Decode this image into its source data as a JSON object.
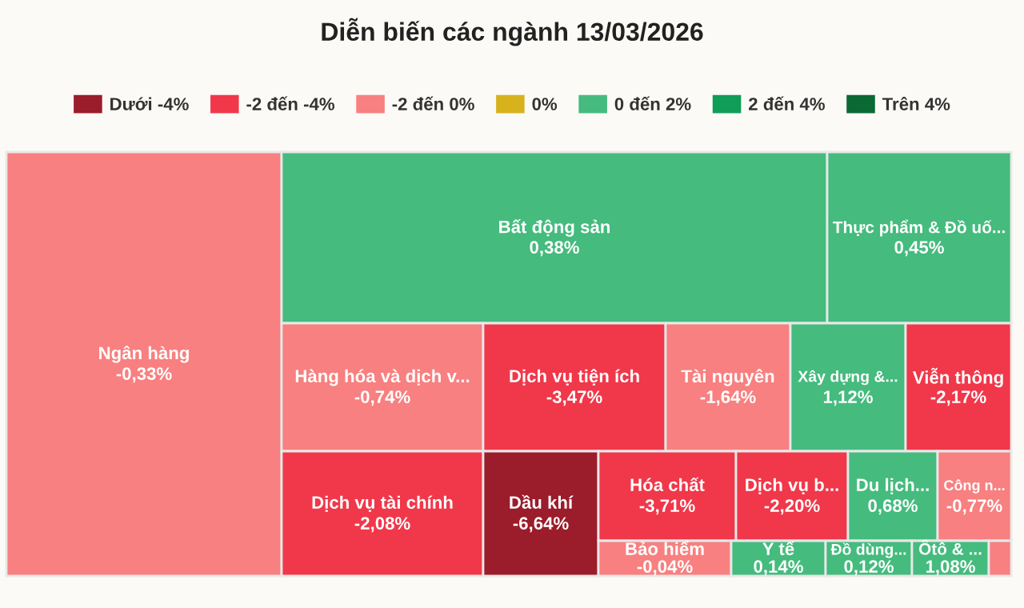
{
  "chart_data": {
    "type": "other",
    "title": "Diễn biến các ngành 13/03/2026",
    "legend": "top",
    "categories": [
      "Ngân hàng",
      "Bất động sản",
      "Thực phẩm & Đồ uố...",
      "Hàng hóa và dịch v...",
      "Dịch vụ tiện ích",
      "Tài nguyên",
      "Xây dựng &...",
      "Viễn thông",
      "Dịch vụ tài chính",
      "Dầu khí",
      "Hóa chất",
      "Dịch vụ b...",
      "Du lịch...",
      "Công n...",
      "Bảo hiểm",
      "Y tế",
      "Đồ dùng...",
      "Ôtô & ...",
      null
    ],
    "values": [
      -0.33,
      0.38,
      0.45,
      -0.74,
      -3.47,
      -1.64,
      1.12,
      -2.17,
      -2.08,
      -6.64,
      -3.71,
      -2.2,
      0.68,
      -0.77,
      -0.04,
      0.14,
      0.12,
      1.08,
      null
    ],
    "value_labels": [
      "-0,33%",
      "0,38%",
      "0,45%",
      "-0,74%",
      "-3,47%",
      "-1,64%",
      "1,12%",
      "-2,17%",
      "-2,08%",
      "-6,64%",
      "-3,71%",
      "-2,20%",
      "0,68%",
      "-0,77%",
      "-0,04%",
      "0,14%",
      "0,12%",
      "1,08%",
      null
    ],
    "colors": [
      "#f88080",
      "#45bb7e",
      "#45bb7e",
      "#f88080",
      "#f0384a",
      "#f88080",
      "#45bb7e",
      "#f0384a",
      "#f0384a",
      "#9b1c2a",
      "#f0384a",
      "#f0384a",
      "#45bb7e",
      "#f88080",
      "#f88080",
      "#45bb7e",
      "#45bb7e",
      "#45bb7e",
      "#f88080"
    ],
    "series": [
      {
        "name": "Dưới -4%",
        "color": "#9b1c2a",
        "values": [
          null,
          null,
          null,
          null,
          null,
          null,
          null,
          null,
          null,
          null,
          null,
          null,
          null,
          null,
          null,
          null,
          null,
          null,
          null
        ]
      },
      {
        "name": "-2 đến -4%",
        "color": "#f0384a",
        "values": [
          null,
          null,
          null,
          null,
          null,
          null,
          null,
          null,
          null,
          null,
          null,
          null,
          null,
          null,
          null,
          null,
          null,
          null,
          null
        ]
      },
      {
        "name": "-2 đến 0%",
        "color": "#f88080",
        "values": [
          null,
          null,
          null,
          null,
          null,
          null,
          null,
          null,
          null,
          null,
          null,
          null,
          null,
          null,
          null,
          null,
          null,
          null,
          null
        ]
      },
      {
        "name": "0%",
        "color": "#d8b21c",
        "values": [
          null,
          null,
          null,
          null,
          null,
          null,
          null,
          null,
          null,
          null,
          null,
          null,
          null,
          null,
          null,
          null,
          null,
          null,
          null
        ]
      },
      {
        "name": "0 đến 2%",
        "color": "#45bb7e",
        "values": [
          null,
          null,
          null,
          null,
          null,
          null,
          null,
          null,
          null,
          null,
          null,
          null,
          null,
          null,
          null,
          null,
          null,
          null,
          null
        ]
      },
      {
        "name": "2 đến 4%",
        "color": "#0f9d58",
        "values": [
          null,
          null,
          null,
          null,
          null,
          null,
          null,
          null,
          null,
          null,
          null,
          null,
          null,
          null,
          null,
          null,
          null,
          null,
          null
        ]
      },
      {
        "name": "Trên 4%",
        "color": "#0b6934",
        "values": [
          null,
          null,
          null,
          null,
          null,
          null,
          null,
          null,
          null,
          null,
          null,
          null,
          null,
          null,
          null,
          null,
          null,
          null,
          null
        ]
      }
    ]
  }
}
